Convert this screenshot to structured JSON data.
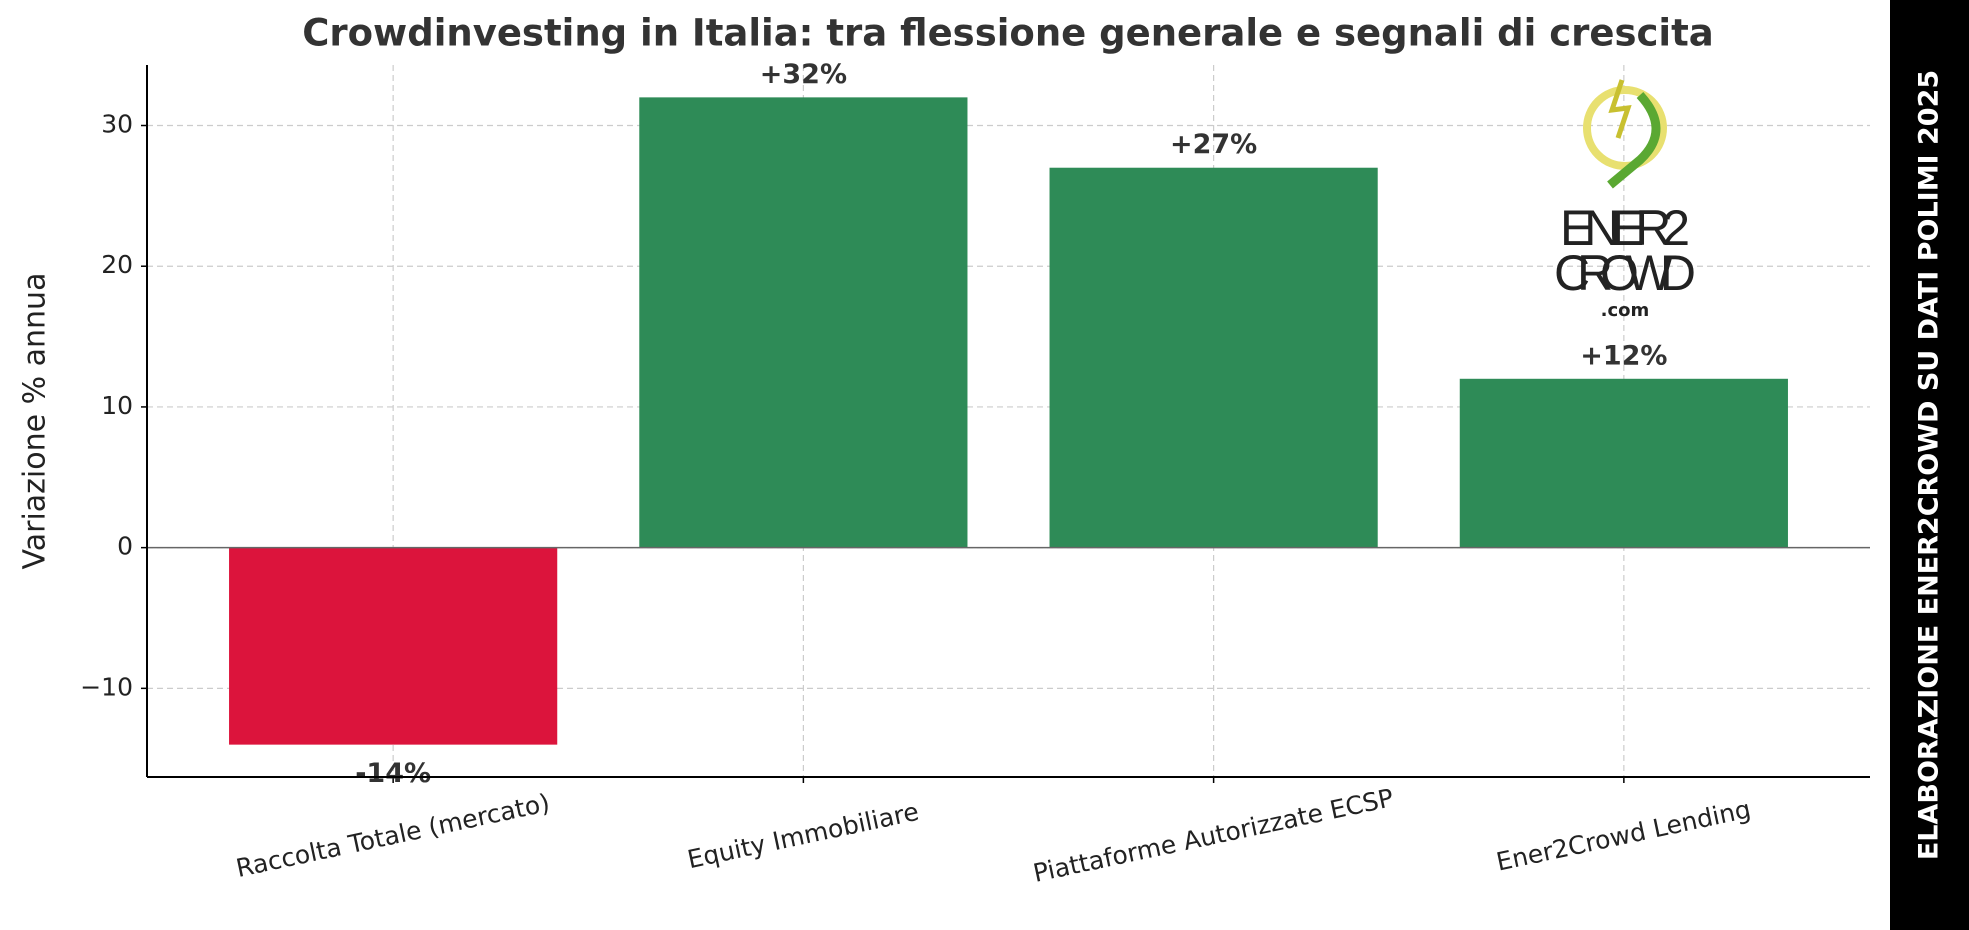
{
  "chart_data": {
    "type": "bar",
    "title": "Crowdinvesting in Italia: tra flessione generale e segnali di crescita",
    "y_label": "Variazione % annua",
    "categories": [
      "Raccolta Totale (mercato)",
      "Equity Immobiliare",
      "Piattaforme Autorizzate ECSP",
      "Ener2Crowd Lending"
    ],
    "values": [
      -14,
      32,
      27,
      12
    ],
    "value_labels": [
      "-14%",
      "+32%",
      "+27%",
      "+12%"
    ],
    "colors": [
      "#dc143c",
      "#2e8b57",
      "#2e8b57",
      "#2e8b57"
    ],
    "ylim": [
      -16.3,
      34.3
    ],
    "yticks": [
      {
        "value": -10,
        "label": "−10"
      },
      0,
      10,
      20,
      30
    ],
    "grid": true
  },
  "logo": {
    "lines": [
      "ENER2",
      "CROWD",
      ".com"
    ]
  },
  "side_banner": "ELABORAZIONE ENER2CROWD SU DATI POLIMI 2025"
}
